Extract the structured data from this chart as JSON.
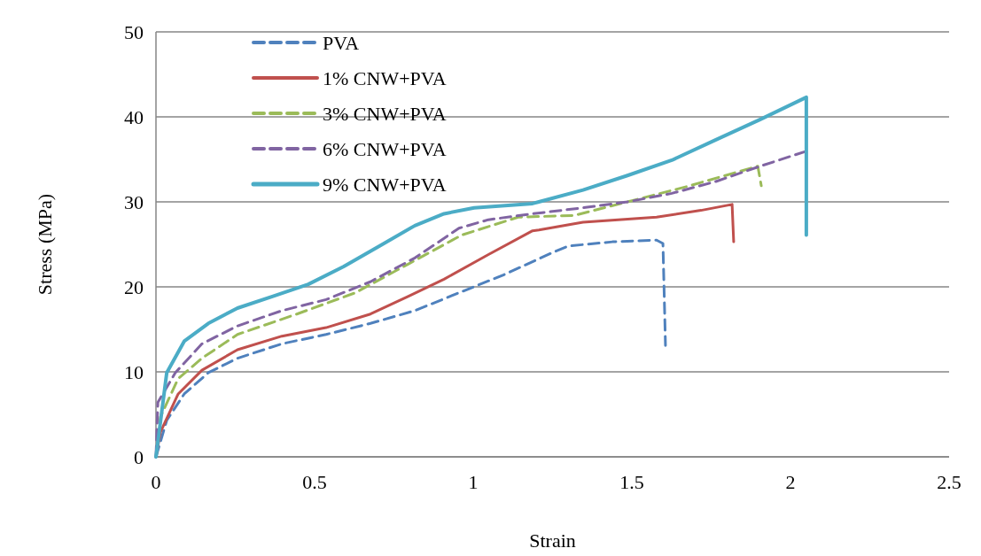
{
  "chart_data": {
    "type": "line",
    "xlabel": "Strain",
    "ylabel": "Stress (MPa)",
    "xlim": [
      0,
      2.5
    ],
    "ylim": [
      0,
      50
    ],
    "xticks": [
      0,
      0.5,
      1,
      1.5,
      2,
      2.5
    ],
    "yticks": [
      0,
      10,
      20,
      30,
      40,
      50
    ],
    "grid": "y",
    "legend": "top left",
    "marker": "none",
    "series": [
      {
        "name": "PVA",
        "color": "#4f81bd",
        "line_style": "dashed",
        "x": [
          0,
          0.034,
          0.089,
          0.165,
          0.257,
          0.397,
          0.536,
          0.676,
          0.816,
          0.955,
          1.095,
          1.254,
          1.299,
          1.439,
          1.578,
          1.598,
          1.606
        ],
        "values": [
          0,
          4.3,
          7.4,
          9.9,
          11.6,
          13.3,
          14.4,
          15.7,
          17.2,
          19.3,
          21.4,
          24.1,
          24.8,
          25.3,
          25.5,
          25.1,
          13.1
        ]
      },
      {
        "name": "1% CNW+PVA",
        "color": "#c0504d",
        "line_style": "solid",
        "x": [
          0,
          0.014,
          0.07,
          0.145,
          0.257,
          0.397,
          0.536,
          0.676,
          0.796,
          0.908,
          1.048,
          1.187,
          1.207,
          1.346,
          1.578,
          1.718,
          1.816,
          1.821
        ],
        "values": [
          0,
          2.9,
          7.4,
          10.2,
          12.6,
          14.2,
          15.2,
          16.8,
          18.9,
          20.9,
          23.8,
          26.6,
          26.7,
          27.6,
          28.2,
          29,
          29.7,
          25.3
        ]
      },
      {
        "name": "3% CNW+PVA",
        "color": "#9bbb59",
        "line_style": "dashed",
        "x": [
          0,
          0.014,
          0.07,
          0.145,
          0.257,
          0.444,
          0.628,
          0.796,
          0.964,
          1.142,
          1.318,
          1.486,
          1.673,
          1.897,
          1.908
        ],
        "values": [
          0,
          4.7,
          9.2,
          11.6,
          14.4,
          16.8,
          19.3,
          22.7,
          26.1,
          28.2,
          28.4,
          30,
          31.8,
          34.2,
          31.9
        ]
      },
      {
        "name": "6% CNW+PVA",
        "color": "#8064a2",
        "line_style": "dashed",
        "x": [
          0,
          0.006,
          0.061,
          0.145,
          0.257,
          0.397,
          0.536,
          0.676,
          0.816,
          0.955,
          1.048,
          1.187,
          1.346,
          1.486,
          1.626,
          1.765,
          1.905,
          2.045
        ],
        "values": [
          0,
          6.4,
          9.9,
          13.3,
          15.4,
          17.2,
          18.5,
          20.6,
          23.4,
          26.9,
          27.9,
          28.6,
          29.3,
          30,
          31,
          32.4,
          34.2,
          35.9
        ]
      },
      {
        "name": "9% CNW+PVA",
        "color": "#4bacc6",
        "line_style": "solid",
        "x": [
          0,
          0.034,
          0.089,
          0.165,
          0.257,
          0.369,
          0.48,
          0.592,
          0.704,
          0.816,
          0.908,
          1.003,
          1.187,
          1.207,
          1.346,
          1.486,
          1.626,
          1.765,
          1.905,
          2.05,
          2.05
        ],
        "values": [
          0,
          9.9,
          13.6,
          15.7,
          17.5,
          18.9,
          20.3,
          22.4,
          24.8,
          27.2,
          28.6,
          29.3,
          29.8,
          30,
          31.4,
          33.1,
          34.9,
          37.3,
          39.7,
          42.3,
          26.1
        ]
      }
    ]
  }
}
